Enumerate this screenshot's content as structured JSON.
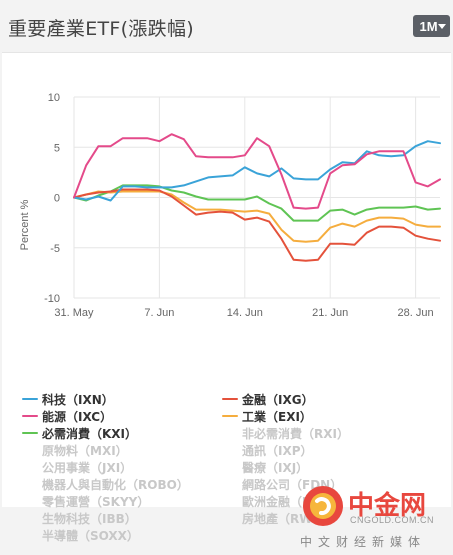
{
  "header": {
    "title": "重要產業ETF(漲跌幅)",
    "range_label": "1M"
  },
  "chart_data": {
    "type": "line",
    "title": "重要產業ETF(漲跌幅)",
    "xlabel": "",
    "ylabel": "Percent %",
    "ylim": [
      -10,
      10
    ],
    "yticks": [
      10,
      5,
      0,
      -5,
      -10
    ],
    "x": [
      "31. May",
      "1. Jun",
      "2. Jun",
      "3. Jun",
      "4. Jun",
      "5. Jun",
      "6. Jun",
      "7. Jun",
      "8. Jun",
      "9. Jun",
      "10. Jun",
      "11. Jun",
      "12. Jun",
      "13. Jun",
      "14. Jun",
      "15. Jun",
      "16. Jun",
      "17. Jun",
      "18. Jun",
      "19. Jun",
      "20. Jun",
      "21. Jun",
      "22. Jun",
      "23. Jun",
      "24. Jun",
      "25. Jun",
      "26. Jun",
      "27. Jun",
      "28. Jun",
      "29. Jun",
      "30. Jun"
    ],
    "xticks": [
      {
        "index": 0,
        "label": "31. May"
      },
      {
        "index": 7,
        "label": "7. Jun"
      },
      {
        "index": 14,
        "label": "14. Jun"
      },
      {
        "index": 21,
        "label": "21. Jun"
      },
      {
        "index": 28,
        "label": "28. Jun"
      }
    ],
    "grid": true,
    "legend_position": "bottom",
    "series": [
      {
        "name": "科技（IXN）",
        "color": "#3aa3d8",
        "values": [
          0,
          -0.2,
          0.1,
          -0.3,
          1.1,
          1.1,
          1.0,
          1.0,
          1.0,
          1.2,
          1.6,
          2.0,
          2.1,
          2.2,
          3.0,
          2.4,
          2.1,
          2.9,
          1.9,
          1.8,
          1.8,
          2.8,
          3.5,
          3.4,
          4.6,
          4.2,
          4.1,
          4.2,
          5.1,
          5.6,
          5.4
        ]
      },
      {
        "name": "金融（IXG）",
        "color": "#e4523b",
        "values": [
          0,
          0.3,
          0.5,
          0.6,
          0.8,
          0.8,
          0.8,
          0.7,
          0.1,
          -0.8,
          -1.7,
          -1.5,
          -1.4,
          -1.5,
          -2.2,
          -2.0,
          -2.4,
          -4.1,
          -6.2,
          -6.3,
          -6.2,
          -4.6,
          -4.6,
          -4.7,
          -3.5,
          -2.9,
          -2.9,
          -3.0,
          -3.8,
          -4.1,
          -4.3
        ]
      },
      {
        "name": "能源（IXC）",
        "color": "#e44a8a",
        "values": [
          0,
          3.2,
          5.1,
          5.1,
          5.9,
          5.9,
          5.9,
          5.6,
          6.3,
          5.8,
          4.1,
          4.0,
          4.0,
          4.0,
          4.2,
          5.9,
          5.1,
          2.3,
          -1.0,
          -1.1,
          -1.0,
          2.4,
          3.2,
          3.3,
          4.3,
          4.6,
          4.6,
          4.6,
          1.5,
          1.1,
          1.8
        ]
      },
      {
        "name": "工業（EXI）",
        "color": "#f5ad3e",
        "values": [
          0,
          0.3,
          0.6,
          0.5,
          0.6,
          0.6,
          0.6,
          0.6,
          0.3,
          -0.5,
          -1.2,
          -1.2,
          -1.2,
          -1.3,
          -1.4,
          -1.3,
          -1.6,
          -3.2,
          -4.3,
          -4.4,
          -4.3,
          -3.0,
          -2.6,
          -2.9,
          -2.3,
          -2.0,
          -2.0,
          -2.1,
          -2.7,
          -2.9,
          -2.9
        ]
      },
      {
        "name": "必需消費（KXI）",
        "color": "#5fc454",
        "values": [
          0,
          -0.3,
          0.2,
          0.6,
          1.2,
          1.2,
          1.2,
          1.1,
          0.7,
          0.5,
          0.1,
          -0.2,
          -0.2,
          -0.2,
          -0.2,
          0.1,
          -0.6,
          -1.1,
          -2.3,
          -2.3,
          -2.3,
          -1.3,
          -1.2,
          -1.7,
          -1.2,
          -1.0,
          -1.0,
          -1.0,
          -0.9,
          -1.2,
          -1.1
        ]
      }
    ]
  },
  "legend": [
    {
      "label": "科技（IXN）",
      "color": "#3aa3d8",
      "active": true
    },
    {
      "label": "金融（IXG）",
      "color": "#e4523b",
      "active": true
    },
    {
      "label": "能源（IXC）",
      "color": "#e44a8a",
      "active": true
    },
    {
      "label": "工業（EXI）",
      "color": "#f5ad3e",
      "active": true
    },
    {
      "label": "必需消費（KXI）",
      "color": "#5fc454",
      "active": true
    },
    {
      "label": "非必需消費（RXI）",
      "color": "#cccccc",
      "active": false
    },
    {
      "label": "原物料（MXI）",
      "color": "#cccccc",
      "active": false
    },
    {
      "label": "通訊（IXP）",
      "color": "#cccccc",
      "active": false
    },
    {
      "label": "公用事業（JXI）",
      "color": "#cccccc",
      "active": false
    },
    {
      "label": "醫療（IXJ）",
      "color": "#cccccc",
      "active": false
    },
    {
      "label": "機器人與自動化（ROBO）",
      "color": "#cccccc",
      "active": false
    },
    {
      "label": "網路公司（FDN）",
      "color": "#cccccc",
      "active": false
    },
    {
      "label": "零售運營（SKYY）",
      "color": "#cccccc",
      "active": false
    },
    {
      "label": "歐洲金融（EUFN）",
      "color": "#cccccc",
      "active": false
    },
    {
      "label": "生物科技（IBB）",
      "color": "#cccccc",
      "active": false
    },
    {
      "label": "房地產（RWO）",
      "color": "#cccccc",
      "active": false
    },
    {
      "label": "半導體（SOXX）",
      "color": "#cccccc",
      "active": false
    }
  ],
  "watermark": {
    "brand": "中金网",
    "url": "CNGOLD.COM.CN",
    "tagline": "中文财经新媒体"
  }
}
